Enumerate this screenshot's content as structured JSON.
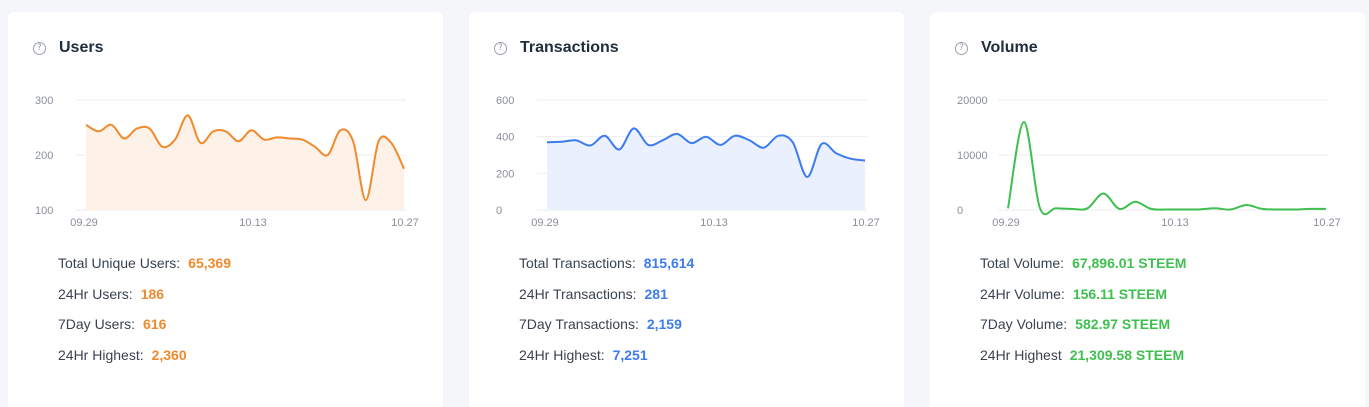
{
  "cards": [
    {
      "title": "Users",
      "color": "#f08a2c",
      "fill": "#fdf1e8",
      "y_ticks": [
        "300",
        "200",
        "100"
      ],
      "x_labels": [
        "09.29",
        "10.13",
        "10.27"
      ],
      "stats": [
        {
          "label": "Total Unique Users:",
          "value": "65,369"
        },
        {
          "label": "24Hr Users:",
          "value": "186"
        },
        {
          "label": "7Day Users:",
          "value": "616"
        },
        {
          "label": "24Hr Highest:",
          "value": "2,360"
        }
      ]
    },
    {
      "title": "Transactions",
      "color": "#3d7cf0",
      "fill": "#eaf0fd",
      "y_ticks": [
        "600",
        "400",
        "200",
        "0"
      ],
      "x_labels": [
        "09.29",
        "10.13",
        "10.27"
      ],
      "stats": [
        {
          "label": "Total Transactions:",
          "value": "815,614"
        },
        {
          "label": "24Hr Transactions:",
          "value": "281"
        },
        {
          "label": "7Day Transactions:",
          "value": "2,159"
        },
        {
          "label": "24Hr Highest:",
          "value": "7,251"
        }
      ]
    },
    {
      "title": "Volume",
      "color": "#3fbf4f",
      "fill": "#ffffff",
      "y_ticks": [
        "20000",
        "10000",
        "0"
      ],
      "x_labels": [
        "09.29",
        "10.13",
        "10.27"
      ],
      "stats": [
        {
          "label": "Total Volume:",
          "value": "67,896.01 STEEM"
        },
        {
          "label": "24Hr Volume:",
          "value": "156.11 STEEM"
        },
        {
          "label": "7Day Volume:",
          "value": "582.97 STEEM"
        },
        {
          "label": "24Hr Highest",
          "value": "21,309.58 STEEM"
        }
      ]
    }
  ],
  "chart_data": [
    {
      "type": "area",
      "title": "Users",
      "x_tick_labels": [
        "09.29",
        "10.13",
        "10.27"
      ],
      "ylim": [
        100,
        300
      ],
      "y_ticks": [
        100,
        200,
        300
      ],
      "grid": true,
      "series": [
        {
          "values": [
            255,
            243,
            255,
            230,
            248,
            248,
            215,
            228,
            272,
            222,
            243,
            243,
            225,
            245,
            228,
            232,
            230,
            228,
            215,
            200,
            245,
            225,
            118,
            225,
            222,
            175
          ]
        }
      ]
    },
    {
      "type": "area",
      "title": "Transactions",
      "x_tick_labels": [
        "09.29",
        "10.13",
        "10.27"
      ],
      "ylim": [
        0,
        600
      ],
      "y_ticks": [
        0,
        200,
        400,
        600
      ],
      "grid": true,
      "series": [
        {
          "values": [
            370,
            372,
            380,
            352,
            405,
            330,
            445,
            355,
            380,
            415,
            365,
            400,
            355,
            405,
            380,
            340,
            405,
            370,
            180,
            360,
            310,
            280,
            270
          ]
        }
      ]
    },
    {
      "type": "line",
      "title": "Volume",
      "x_tick_labels": [
        "09.29",
        "10.13",
        "10.27"
      ],
      "ylim": [
        0,
        20000
      ],
      "y_ticks": [
        0,
        10000,
        20000
      ],
      "grid": true,
      "series": [
        {
          "values": [
            300,
            16000,
            400,
            300,
            200,
            300,
            3000,
            200,
            1500,
            200,
            100,
            100,
            100,
            300,
            100,
            900,
            200,
            100,
            100,
            200,
            200
          ]
        }
      ]
    }
  ]
}
